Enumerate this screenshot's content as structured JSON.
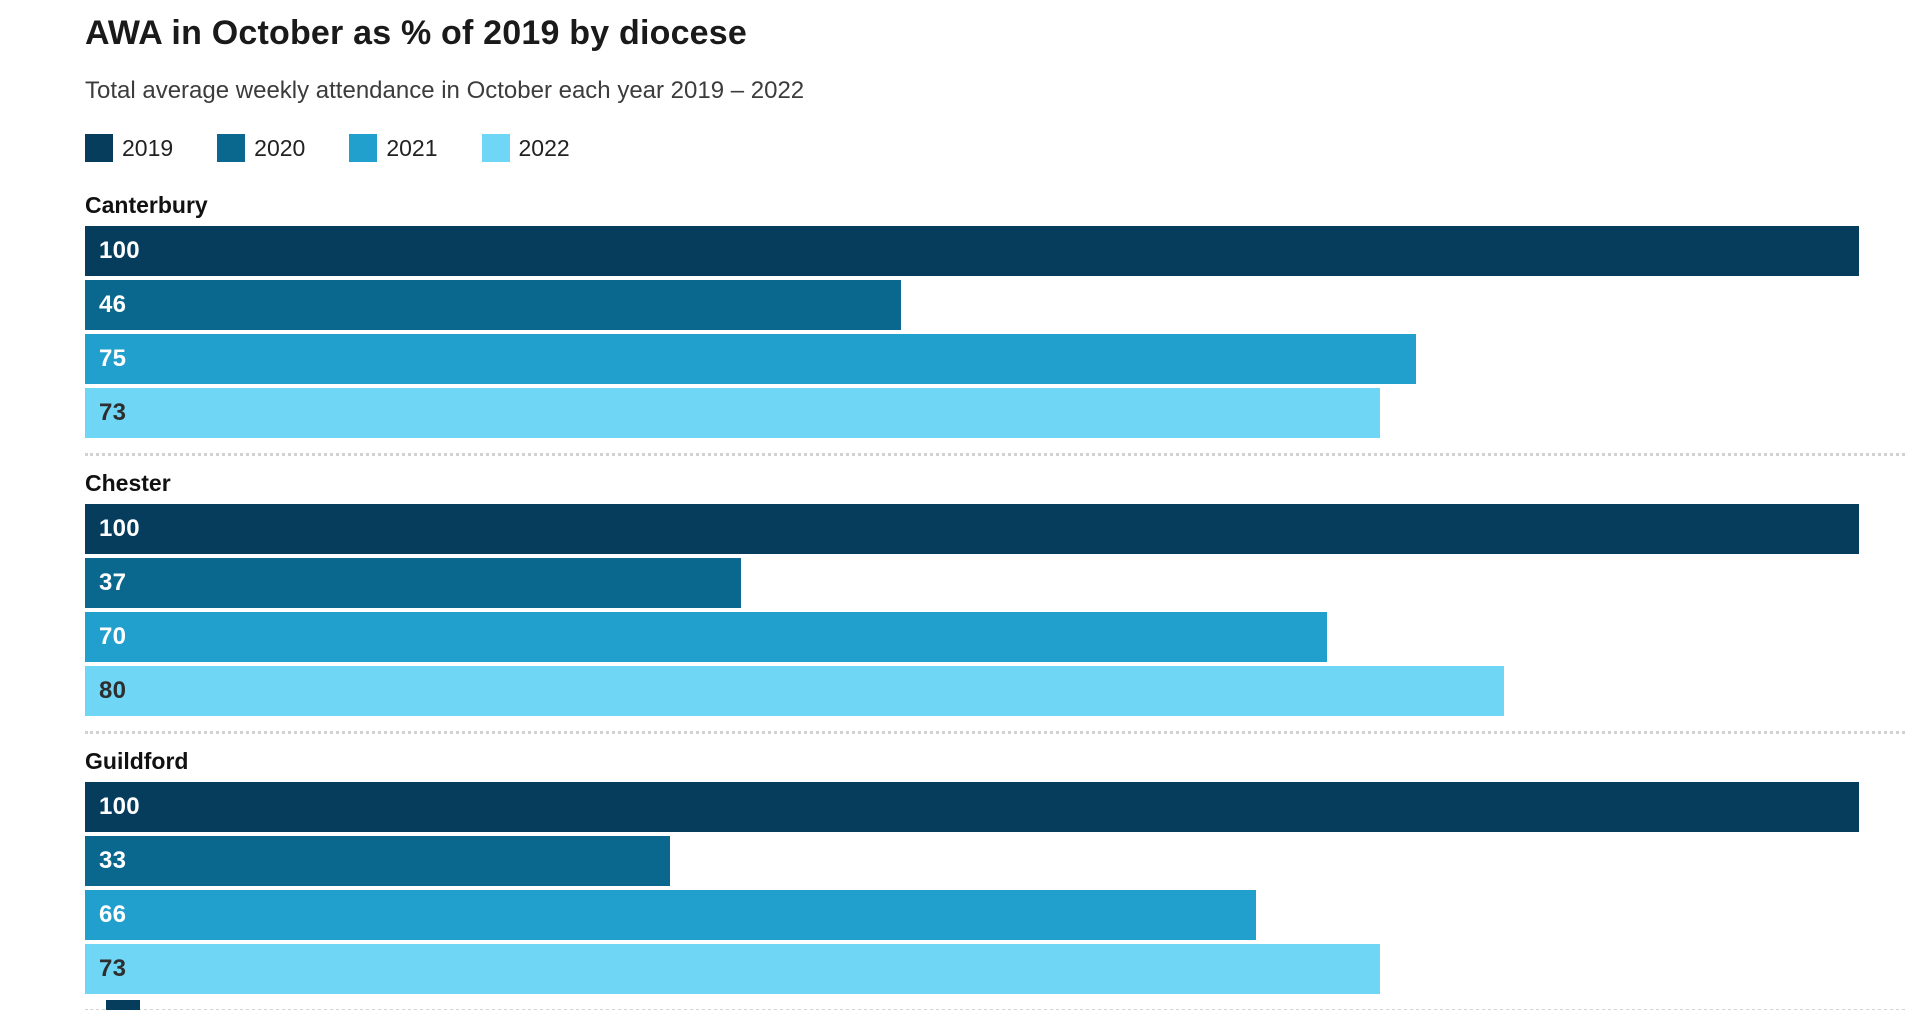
{
  "header": {
    "title": "AWA in October as % of 2019 by diocese",
    "subtitle": "Total average weekly attendance in October each year 2019 – 2022"
  },
  "colors": {
    "background": "#ffffff",
    "title_text": "#1a1a1a",
    "subtitle_text": "#3c3c3c",
    "group_label_text": "#111111",
    "separator": "#d2d2d2"
  },
  "chart_data": {
    "type": "bar",
    "orientation": "horizontal",
    "title": "AWA in October as % of 2019 by diocese",
    "subtitle": "Total average weekly attendance in October each year 2019 – 2022",
    "xlabel": "",
    "ylabel": "",
    "xlim": [
      0,
      100
    ],
    "grid": false,
    "legend_position": "top",
    "value_labels_inside_bars": true,
    "categories": [
      "Canterbury",
      "Chester",
      "Guildford"
    ],
    "series": [
      {
        "name": "2019",
        "color": "#073d5c",
        "value_text_color": "#ffffff",
        "values": [
          100,
          100,
          100
        ]
      },
      {
        "name": "2020",
        "color": "#0a688f",
        "value_text_color": "#ffffff",
        "values": [
          46,
          37,
          33
        ]
      },
      {
        "name": "2021",
        "color": "#22a0cd",
        "value_text_color": "#ffffff",
        "values": [
          75,
          70,
          66
        ]
      },
      {
        "name": "2022",
        "color": "#70d6f6",
        "value_text_color": "#2e2e2e",
        "values": [
          73,
          80,
          73
        ]
      }
    ],
    "notes": "Partial bar of a fourth (cut-off) group visible at bottom edge, colored as 2019 series"
  }
}
